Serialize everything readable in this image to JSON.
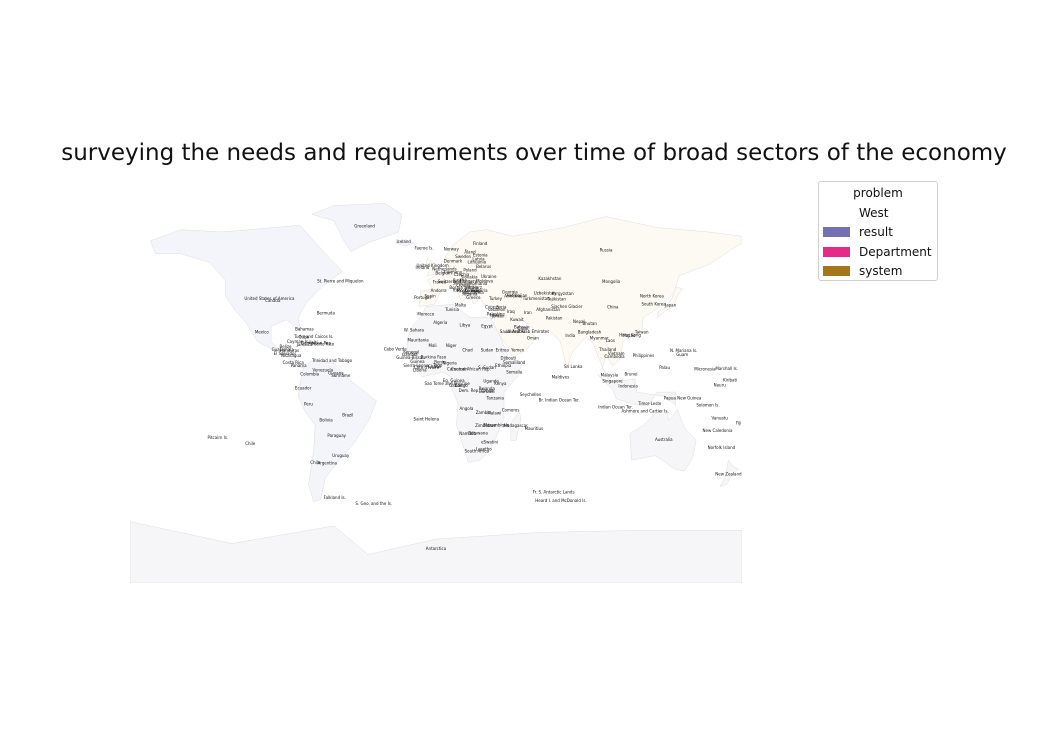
{
  "title": "surveying the needs and requirements over time of broad sectors of the economy",
  "legend": {
    "title": "problem",
    "entries": [
      {
        "label": "West",
        "color": "#ffffff"
      },
      {
        "label": "result",
        "color": "#7570b3"
      },
      {
        "label": "Department",
        "color": "#e7298a"
      },
      {
        "label": "system",
        "color": "#a6761d"
      }
    ]
  },
  "map_labels": [
    {
      "text": "Greenland",
      "lon": -42,
      "lat": 72
    },
    {
      "text": "Iceland",
      "lon": -19,
      "lat": 65
    },
    {
      "text": "Faeroe Is.",
      "lon": -7,
      "lat": 62
    },
    {
      "text": "Norway",
      "lon": 9,
      "lat": 61.5
    },
    {
      "text": "Finland",
      "lon": 26,
      "lat": 64
    },
    {
      "text": "Sweden",
      "lon": 16,
      "lat": 58
    },
    {
      "text": "Åland",
      "lon": 20,
      "lat": 60.2
    },
    {
      "text": "Estonia",
      "lon": 26,
      "lat": 58.8
    },
    {
      "text": "Latvia",
      "lon": 25,
      "lat": 57
    },
    {
      "text": "Lithuania",
      "lon": 24,
      "lat": 55.5
    },
    {
      "text": "Denmark",
      "lon": 10,
      "lat": 56
    },
    {
      "text": "United Kingdom",
      "lon": -2,
      "lat": 54
    },
    {
      "text": "Ireland",
      "lon": -8,
      "lat": 53
    },
    {
      "text": "Belarus",
      "lon": 28,
      "lat": 53.5
    },
    {
      "text": "Netherlands",
      "lon": 5,
      "lat": 52.5
    },
    {
      "text": "Poland",
      "lon": 20,
      "lat": 52
    },
    {
      "text": "Germany",
      "lon": 10,
      "lat": 51
    },
    {
      "text": "Belgium",
      "lon": 4.5,
      "lat": 50.5
    },
    {
      "text": "Czechia",
      "lon": 15,
      "lat": 49.8
    },
    {
      "text": "Ukraine",
      "lon": 31,
      "lat": 49
    },
    {
      "text": "Slovakia",
      "lon": 19.5,
      "lat": 48.7
    },
    {
      "text": "Austria",
      "lon": 14,
      "lat": 47.5
    },
    {
      "text": "Hungary",
      "lon": 19,
      "lat": 47
    },
    {
      "text": "Moldova",
      "lon": 28.5,
      "lat": 47
    },
    {
      "text": "France",
      "lon": 2,
      "lat": 46.5
    },
    {
      "text": "Switzerland",
      "lon": 8,
      "lat": 46.8
    },
    {
      "text": "Slovenia",
      "lon": 14.8,
      "lat": 46
    },
    {
      "text": "Croatia",
      "lon": 16,
      "lat": 45.2
    },
    {
      "text": "Romania",
      "lon": 25,
      "lat": 45.8
    },
    {
      "text": "Serbia",
      "lon": 21,
      "lat": 44
    },
    {
      "text": "Bosnia and Herz.",
      "lon": 17.8,
      "lat": 44
    },
    {
      "text": "Italy",
      "lon": 12.5,
      "lat": 42.8
    },
    {
      "text": "Bulgaria",
      "lon": 25.5,
      "lat": 42.7
    },
    {
      "text": "Montenegro",
      "lon": 19.3,
      "lat": 42.7
    },
    {
      "text": "Kosovo",
      "lon": 21,
      "lat": 42.6
    },
    {
      "text": "Macedonia",
      "lon": 21.7,
      "lat": 41.6
    },
    {
      "text": "Albania",
      "lon": 20,
      "lat": 41
    },
    {
      "text": "Andorra",
      "lon": 1.5,
      "lat": 42.5
    },
    {
      "text": "Spain",
      "lon": -3.5,
      "lat": 40
    },
    {
      "text": "Portugal",
      "lon": -8,
      "lat": 39.5
    },
    {
      "text": "Greece",
      "lon": 22,
      "lat": 39.5
    },
    {
      "text": "Turkey",
      "lon": 35,
      "lat": 39
    },
    {
      "text": "Malta",
      "lon": 14.4,
      "lat": 35.9
    },
    {
      "text": "Cyprus",
      "lon": 33,
      "lat": 35
    },
    {
      "text": "Georgia",
      "lon": 43.5,
      "lat": 42
    },
    {
      "text": "Armenia",
      "lon": 45,
      "lat": 40.2
    },
    {
      "text": "Azerbaijan",
      "lon": 47.5,
      "lat": 40.3
    },
    {
      "text": "Kazakhstan",
      "lon": 67,
      "lat": 48
    },
    {
      "text": "Uzbekistan",
      "lon": 64,
      "lat": 41.5
    },
    {
      "text": "Turkmenistan",
      "lon": 59,
      "lat": 39
    },
    {
      "text": "Kyrgyzstan",
      "lon": 74.5,
      "lat": 41.2
    },
    {
      "text": "Tajikistan",
      "lon": 71,
      "lat": 38.7
    },
    {
      "text": "Siachen Glacier",
      "lon": 77,
      "lat": 35.4
    },
    {
      "text": "Afghanistan",
      "lon": 66,
      "lat": 34
    },
    {
      "text": "Pakistan",
      "lon": 69.5,
      "lat": 30
    },
    {
      "text": "Mongolia",
      "lon": 103,
      "lat": 46.8
    },
    {
      "text": "Russia",
      "lon": 100,
      "lat": 61
    },
    {
      "text": "China",
      "lon": 104,
      "lat": 35
    },
    {
      "text": "North Korea",
      "lon": 127,
      "lat": 40
    },
    {
      "text": "South Korea",
      "lon": 128,
      "lat": 36.5
    },
    {
      "text": "Japan",
      "lon": 138,
      "lat": 36
    },
    {
      "text": "Syria",
      "lon": 38.5,
      "lat": 35
    },
    {
      "text": "Lebanon",
      "lon": 35.8,
      "lat": 33.9
    },
    {
      "text": "Iraq",
      "lon": 44,
      "lat": 33
    },
    {
      "text": "Iran",
      "lon": 54,
      "lat": 32.5
    },
    {
      "text": "Israel",
      "lon": 34.9,
      "lat": 31.5
    },
    {
      "text": "Palestine",
      "lon": 35.2,
      "lat": 32
    },
    {
      "text": "Jordan",
      "lon": 36.5,
      "lat": 31
    },
    {
      "text": "Kuwait",
      "lon": 47.6,
      "lat": 29.3
    },
    {
      "text": "Qatar",
      "lon": 51.2,
      "lat": 25.3
    },
    {
      "text": "Bahrain",
      "lon": 50.5,
      "lat": 26
    },
    {
      "text": "Saudi Arabia",
      "lon": 45,
      "lat": 24
    },
    {
      "text": "United Arab Emirates",
      "lon": 54,
      "lat": 24
    },
    {
      "text": "Oman",
      "lon": 57,
      "lat": 21
    },
    {
      "text": "Yemen",
      "lon": 48,
      "lat": 15.5
    },
    {
      "text": "Egypt",
      "lon": 30,
      "lat": 26.5
    },
    {
      "text": "Libya",
      "lon": 17,
      "lat": 27
    },
    {
      "text": "Tunisia",
      "lon": 9.5,
      "lat": 34
    },
    {
      "text": "Algeria",
      "lon": 2.5,
      "lat": 28
    },
    {
      "text": "Morocco",
      "lon": -6,
      "lat": 31.8
    },
    {
      "text": "W. Sahara",
      "lon": -13,
      "lat": 24.5
    },
    {
      "text": "Mauritania",
      "lon": -10.5,
      "lat": 20
    },
    {
      "text": "Mali",
      "lon": -2,
      "lat": 17.5
    },
    {
      "text": "Niger",
      "lon": 9,
      "lat": 17.5
    },
    {
      "text": "Chad",
      "lon": 18.5,
      "lat": 15.5
    },
    {
      "text": "Sudan",
      "lon": 30,
      "lat": 15.5
    },
    {
      "text": "Eritrea",
      "lon": 39,
      "lat": 15.5
    },
    {
      "text": "Djibouti",
      "lon": 42.5,
      "lat": 11.8
    },
    {
      "text": "Somaliland",
      "lon": 46,
      "lat": 9.8
    },
    {
      "text": "Ethiopia",
      "lon": 39.5,
      "lat": 8.5
    },
    {
      "text": "Somalia",
      "lon": 46,
      "lat": 5.5
    },
    {
      "text": "S. Sudan",
      "lon": 30,
      "lat": 7.5
    },
    {
      "text": "Central African Rep.",
      "lon": 20.5,
      "lat": 6.8
    },
    {
      "text": "Cameroon",
      "lon": 12.5,
      "lat": 6.8
    },
    {
      "text": "Nigeria",
      "lon": 8,
      "lat": 9.5
    },
    {
      "text": "Benin",
      "lon": 2.3,
      "lat": 10
    },
    {
      "text": "Togo",
      "lon": 1,
      "lat": 8.6
    },
    {
      "text": "Ghana",
      "lon": -1,
      "lat": 7.9
    },
    {
      "text": "Burkina Faso",
      "lon": -1.5,
      "lat": 12.3
    },
    {
      "text": "Côte d'Ivoire",
      "lon": -5.5,
      "lat": 7.5
    },
    {
      "text": "Liberia",
      "lon": -9.5,
      "lat": 6.4
    },
    {
      "text": "Sierra Leone",
      "lon": -11.8,
      "lat": 8.5
    },
    {
      "text": "Guinea",
      "lon": -10.9,
      "lat": 10.3
    },
    {
      "text": "Guinea-Bissau",
      "lon": -15,
      "lat": 12
    },
    {
      "text": "Senegal",
      "lon": -14.5,
      "lat": 14.5
    },
    {
      "text": "Gambia",
      "lon": -15.4,
      "lat": 13.4
    },
    {
      "text": "Cabo Verde",
      "lon": -24,
      "lat": 16
    },
    {
      "text": "Eq. Guinea",
      "lon": 10.4,
      "lat": 1.6
    },
    {
      "text": "Sao Tome and Principe",
      "lon": 6.6,
      "lat": 0.2
    },
    {
      "text": "Gabon",
      "lon": 11.6,
      "lat": -0.6
    },
    {
      "text": "Congo",
      "lon": 15,
      "lat": -0.7
    },
    {
      "text": "Dem. Rep. Congo",
      "lon": 23.6,
      "lat": -2.9
    },
    {
      "text": "Uganda",
      "lon": 32.4,
      "lat": 1.3
    },
    {
      "text": "Kenya",
      "lon": 37.9,
      "lat": 0.2
    },
    {
      "text": "Rwanda",
      "lon": 29.9,
      "lat": -2
    },
    {
      "text": "Burundi",
      "lon": 29.9,
      "lat": -3.4
    },
    {
      "text": "Tanzania",
      "lon": 34.9,
      "lat": -6.4
    },
    {
      "text": "Angola",
      "lon": 17.9,
      "lat": -11.2
    },
    {
      "text": "Zambia",
      "lon": 27.8,
      "lat": -13.1
    },
    {
      "text": "Malawi",
      "lon": 34.3,
      "lat": -13.3
    },
    {
      "text": "Mozambique",
      "lon": 35.5,
      "lat": -18.7
    },
    {
      "text": "Zimbabwe",
      "lon": 29.2,
      "lat": -19
    },
    {
      "text": "Namibia",
      "lon": 18.5,
      "lat": -22.6
    },
    {
      "text": "Botswana",
      "lon": 24.7,
      "lat": -22.3
    },
    {
      "text": "eSwatini",
      "lon": 31.5,
      "lat": -26.5
    },
    {
      "text": "South Africa",
      "lon": 24,
      "lat": -30.6
    },
    {
      "text": "Lesotho",
      "lon": 28.2,
      "lat": -29.6
    },
    {
      "text": "Madagascar",
      "lon": 46.9,
      "lat": -18.8
    },
    {
      "text": "Comoros",
      "lon": 43.9,
      "lat": -11.9
    },
    {
      "text": "Mauritius",
      "lon": 57.6,
      "lat": -20.3
    },
    {
      "text": "Seychelles",
      "lon": 55.5,
      "lat": -4.7
    },
    {
      "text": "Saint Helena",
      "lon": -5.7,
      "lat": -15.9
    },
    {
      "text": "Br. Indian Ocean Ter.",
      "lon": 72.4,
      "lat": -7.3
    },
    {
      "text": "Maldives",
      "lon": 73.2,
      "lat": 3.2
    },
    {
      "text": "India",
      "lon": 79,
      "lat": 22
    },
    {
      "text": "Nepal",
      "lon": 84,
      "lat": 28.4
    },
    {
      "text": "Bhutan",
      "lon": 90.4,
      "lat": 27.5
    },
    {
      "text": "Bangladesh",
      "lon": 90.3,
      "lat": 23.7
    },
    {
      "text": "Sri Lanka",
      "lon": 80.7,
      "lat": 7.9
    },
    {
      "text": "Myanmar",
      "lon": 96,
      "lat": 21
    },
    {
      "text": "Thailand",
      "lon": 101,
      "lat": 15.8
    },
    {
      "text": "Laos",
      "lon": 102.5,
      "lat": 19.9
    },
    {
      "text": "Vietnam",
      "lon": 106,
      "lat": 14
    },
    {
      "text": "Cambodia",
      "lon": 105,
      "lat": 12.5
    },
    {
      "text": "Malaysia",
      "lon": 102,
      "lat": 4
    },
    {
      "text": "Singapore",
      "lon": 103.8,
      "lat": 1.3
    },
    {
      "text": "Brunei",
      "lon": 114.7,
      "lat": 4.5
    },
    {
      "text": "Indonesia",
      "lon": 113,
      "lat": -0.8
    },
    {
      "text": "Timor-Leste",
      "lon": 125.7,
      "lat": -8.9
    },
    {
      "text": "Philippines",
      "lon": 122,
      "lat": 12.9
    },
    {
      "text": "Taiwan",
      "lon": 121,
      "lat": 23.7
    },
    {
      "text": "Hong Kong",
      "lon": 114.2,
      "lat": 22.3
    },
    {
      "text": "Macao",
      "lon": 113.5,
      "lat": 22.2
    },
    {
      "text": "Palau",
      "lon": 134.5,
      "lat": 7.5
    },
    {
      "text": "Guam",
      "lon": 144.8,
      "lat": 13.4
    },
    {
      "text": "N. Mariana Is.",
      "lon": 145.7,
      "lat": 15.2
    },
    {
      "text": "Micronesia",
      "lon": 158.2,
      "lat": 6.9
    },
    {
      "text": "Marshall Is.",
      "lon": 171,
      "lat": 7.1
    },
    {
      "text": "Kiribati",
      "lon": 173,
      "lat": 1.9
    },
    {
      "text": "Nauru",
      "lon": 166.9,
      "lat": -0.5
    },
    {
      "text": "Papua New Guinea",
      "lon": 145,
      "lat": -6.3
    },
    {
      "text": "Solomon Is.",
      "lon": 160,
      "lat": -9.6
    },
    {
      "text": "Vanuatu",
      "lon": 166.9,
      "lat": -15.4
    },
    {
      "text": "Fiji",
      "lon": 178,
      "lat": -17.7
    },
    {
      "text": "New Caledonia",
      "lon": 165.6,
      "lat": -21.3
    },
    {
      "text": "Norfolk Island",
      "lon": 167.9,
      "lat": -29
    },
    {
      "text": "Australia",
      "lon": 134,
      "lat": -25.3
    },
    {
      "text": "Ashmore and Cartier Is.",
      "lon": 123,
      "lat": -12.2
    },
    {
      "text": "Indian Ocean Ter.",
      "lon": 105.6,
      "lat": -10.5
    },
    {
      "text": "New Zealand",
      "lon": 172,
      "lat": -41
    },
    {
      "text": "Fr. S. Antarctic Lands",
      "lon": 69.2,
      "lat": -49.3
    },
    {
      "text": "Heard I. and McDonald Is.",
      "lon": 73.5,
      "lat": -53.1
    },
    {
      "text": "Antarctica",
      "lon": 0,
      "lat": -75
    },
    {
      "text": "S. Geo. and the Is.",
      "lon": -36.6,
      "lat": -54.4
    },
    {
      "text": "Falkland Is.",
      "lon": -59.5,
      "lat": -51.8
    },
    {
      "text": "Argentina",
      "lon": -64,
      "lat": -36
    },
    {
      "text": "Chile",
      "lon": -71,
      "lat": -35.7
    },
    {
      "text": "Uruguay",
      "lon": -56,
      "lat": -32.5
    },
    {
      "text": "Paraguay",
      "lon": -58.4,
      "lat": -23.4
    },
    {
      "text": "Bolivia",
      "lon": -64.7,
      "lat": -16.3
    },
    {
      "text": "Brazil",
      "lon": -51.9,
      "lat": -14.2
    },
    {
      "text": "Peru",
      "lon": -75,
      "lat": -9.2
    },
    {
      "text": "Ecuador",
      "lon": -78.2,
      "lat": -1.8
    },
    {
      "text": "Colombia",
      "lon": -74.3,
      "lat": 4.6
    },
    {
      "text": "Venezuela",
      "lon": -66.6,
      "lat": 6.4
    },
    {
      "text": "Guyana",
      "lon": -58.9,
      "lat": 4.9
    },
    {
      "text": "Suriname",
      "lon": -56,
      "lat": 3.9
    },
    {
      "text": "Panama",
      "lon": -80.8,
      "lat": 8.5
    },
    {
      "text": "Costa Rica",
      "lon": -84,
      "lat": 9.7
    },
    {
      "text": "Nicaragua",
      "lon": -85.2,
      "lat": 12.9
    },
    {
      "text": "Honduras",
      "lon": -86.2,
      "lat": 15.2
    },
    {
      "text": "El Salvador",
      "lon": -88.9,
      "lat": 13.8
    },
    {
      "text": "Guatemala",
      "lon": -90.2,
      "lat": 15.8
    },
    {
      "text": "Belize",
      "lon": -88.5,
      "lat": 17.2
    },
    {
      "text": "Mexico",
      "lon": -102.5,
      "lat": 23.6
    },
    {
      "text": "Cuba",
      "lon": -77.8,
      "lat": 21.5
    },
    {
      "text": "Cayman Is.",
      "lon": -81.2,
      "lat": 19.3
    },
    {
      "text": "Jamaica",
      "lon": -77.3,
      "lat": 18.1
    },
    {
      "text": "Haiti",
      "lon": -72.3,
      "lat": 18.9
    },
    {
      "text": "Dominican Rep.",
      "lon": -70.2,
      "lat": 18.7
    },
    {
      "text": "Puerto Rico",
      "lon": -66.6,
      "lat": 18.2
    },
    {
      "text": "Bahamas",
      "lon": -77.4,
      "lat": 25
    },
    {
      "text": "Turks and Caicos Is.",
      "lon": -71.8,
      "lat": 21.7
    },
    {
      "text": "Trinidad and Tobago",
      "lon": -61.2,
      "lat": 10.7
    },
    {
      "text": "Bermuda",
      "lon": -64.8,
      "lat": 32.3
    },
    {
      "text": "St. Pierre and Miquelon",
      "lon": -56.3,
      "lat": 46.9
    },
    {
      "text": "United States of America",
      "lon": -98,
      "lat": 39
    },
    {
      "text": "Canada",
      "lon": -96,
      "lat": 38
    },
    {
      "text": "Pitcairn Is.",
      "lon": -128.3,
      "lat": -24.4
    },
    {
      "text": "Chile",
      "lon": -109.3,
      "lat": -27.1
    }
  ],
  "map_fills": {
    "land": "#f6f6f8",
    "land_warm": "#fdfaf3",
    "land_cool": "#f3f5fa",
    "border": "#d5d5d5"
  }
}
